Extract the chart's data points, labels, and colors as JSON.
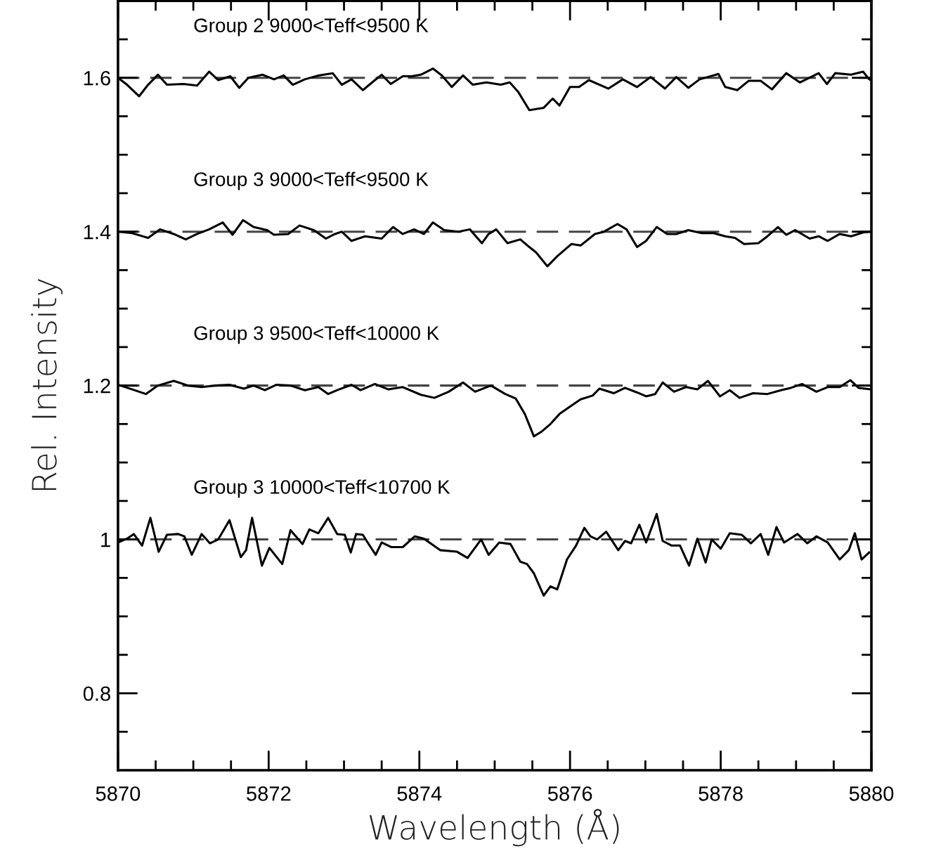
{
  "chart_data": {
    "type": "line",
    "xlabel": "Wavelength (Å)",
    "ylabel": "Rel. Intensity",
    "xlim": [
      5870,
      5880
    ],
    "ylim": [
      0.7,
      1.7
    ],
    "xticks": [
      5870,
      {
        "value": 5870.5,
        "label": null
      },
      {
        "value": 5871,
        "label": null
      },
      {
        "value": 5871.5,
        "label": null
      },
      5872,
      {
        "value": 5872.5,
        "label": null
      },
      {
        "value": 5873,
        "label": null
      },
      {
        "value": 5873.5,
        "label": null
      },
      5874,
      {
        "value": 5874.5,
        "label": null
      },
      {
        "value": 5875,
        "label": null
      },
      {
        "value": 5875.5,
        "label": null
      },
      5876,
      {
        "value": 5876.5,
        "label": null
      },
      {
        "value": 5877,
        "label": null
      },
      {
        "value": 5877.5,
        "label": null
      },
      5878,
      {
        "value": 5878.5,
        "label": null
      },
      {
        "value": 5879,
        "label": null
      },
      {
        "value": 5879.5,
        "label": null
      },
      5880
    ],
    "yticks": [
      {
        "value": 0.75,
        "label": null
      },
      0.8,
      {
        "value": 0.85,
        "label": null
      },
      {
        "value": 0.9,
        "label": null
      },
      {
        "value": 0.95,
        "label": null
      },
      1,
      {
        "value": 1.05,
        "label": null
      },
      {
        "value": 1.1,
        "label": null
      },
      {
        "value": 1.15,
        "label": null
      },
      1.2,
      {
        "value": 1.25,
        "label": null
      },
      {
        "value": 1.3,
        "label": null
      },
      {
        "value": 1.35,
        "label": null
      },
      1.4,
      {
        "value": 1.45,
        "label": null
      },
      {
        "value": 1.5,
        "label": null
      },
      {
        "value": 1.55,
        "label": null
      },
      1.6,
      {
        "value": 1.65,
        "label": null
      }
    ],
    "annotations": [
      "Group 2 9000<Teff<9500 K",
      "Group 3 9000<Teff<9500 K",
      "Group 3 9500<Teff<10000 K",
      "Group 3 10000<Teff<10700 K"
    ],
    "grid": false,
    "legend": false,
    "marker": "none",
    "line_style": "solid",
    "ref_lines": [
      {
        "axis": "y",
        "value": 1.6,
        "color": "#444444",
        "line_style": "dashed"
      },
      {
        "axis": "y",
        "value": 1.4,
        "color": "#444444",
        "line_style": "dashed"
      },
      {
        "axis": "y",
        "value": 1.2,
        "color": "#444444",
        "line_style": "dashed"
      },
      {
        "axis": "y",
        "value": 1.0,
        "color": "#444444",
        "line_style": "dashed"
      }
    ],
    "series": [
      {
        "color": "#000000",
        "x": [
          5870.0,
          5870.12,
          5870.28,
          5870.4,
          5870.53,
          5870.65,
          5870.87,
          5871.05,
          5871.21,
          5871.33,
          5871.49,
          5871.61,
          5871.73,
          5871.92,
          5872.07,
          5872.2,
          5872.32,
          5872.48,
          5872.66,
          5872.85,
          5872.97,
          5873.1,
          5873.25,
          5873.41,
          5873.5,
          5873.62,
          5873.78,
          5873.9,
          5874.02,
          5874.18,
          5874.3,
          5874.43,
          5874.58,
          5874.71,
          5874.89,
          5875.08,
          5875.2,
          5875.31,
          5875.46,
          5875.65,
          5875.77,
          5875.86,
          5876.0,
          5876.12,
          5876.25,
          5876.51,
          5876.7,
          5876.89,
          5877.07,
          5877.26,
          5877.41,
          5877.57,
          5877.72,
          5877.97,
          5878.06,
          5878.22,
          5878.37,
          5878.53,
          5878.68,
          5878.87,
          5879.05,
          5879.3,
          5879.41,
          5879.52,
          5879.73,
          5879.89,
          5879.97,
          5880.0
        ],
        "values": [
          1.6,
          1.591,
          1.576,
          1.591,
          1.604,
          1.591,
          1.592,
          1.59,
          1.608,
          1.597,
          1.602,
          1.587,
          1.6,
          1.604,
          1.598,
          1.603,
          1.591,
          1.598,
          1.603,
          1.606,
          1.591,
          1.598,
          1.584,
          1.597,
          1.604,
          1.592,
          1.602,
          1.602,
          1.604,
          1.612,
          1.603,
          1.588,
          1.603,
          1.591,
          1.594,
          1.591,
          1.594,
          1.582,
          1.558,
          1.561,
          1.573,
          1.564,
          1.588,
          1.588,
          1.597,
          1.586,
          1.598,
          1.588,
          1.601,
          1.586,
          1.601,
          1.587,
          1.598,
          1.605,
          1.588,
          1.584,
          1.596,
          1.596,
          1.585,
          1.606,
          1.594,
          1.606,
          1.592,
          1.606,
          1.604,
          1.608,
          1.598,
          1.597
        ]
      },
      {
        "color": "#000000",
        "x": [
          5870.0,
          5870.19,
          5870.4,
          5870.56,
          5870.74,
          5870.9,
          5871.05,
          5871.21,
          5871.39,
          5871.52,
          5871.66,
          5871.8,
          5871.98,
          5872.07,
          5872.26,
          5872.41,
          5872.6,
          5872.76,
          5872.88,
          5872.97,
          5873.1,
          5873.28,
          5873.5,
          5873.65,
          5873.78,
          5873.93,
          5874.06,
          5874.18,
          5874.33,
          5874.52,
          5874.67,
          5874.83,
          5874.92,
          5875.02,
          5875.17,
          5875.34,
          5875.46,
          5875.55,
          5875.7,
          5875.83,
          5876.02,
          5876.14,
          5876.33,
          5876.45,
          5876.63,
          5876.75,
          5876.89,
          5877.01,
          5877.15,
          5877.29,
          5877.41,
          5877.57,
          5877.75,
          5877.91,
          5878.06,
          5878.19,
          5878.31,
          5878.5,
          5878.62,
          5878.76,
          5878.87,
          5878.99,
          5879.18,
          5879.3,
          5879.42,
          5879.58,
          5879.73,
          5879.89,
          5880.0
        ],
        "values": [
          1.4,
          1.398,
          1.392,
          1.403,
          1.397,
          1.39,
          1.397,
          1.403,
          1.412,
          1.396,
          1.415,
          1.406,
          1.402,
          1.396,
          1.397,
          1.408,
          1.402,
          1.391,
          1.397,
          1.4,
          1.388,
          1.394,
          1.391,
          1.406,
          1.397,
          1.403,
          1.397,
          1.412,
          1.402,
          1.4,
          1.403,
          1.385,
          1.397,
          1.403,
          1.385,
          1.39,
          1.38,
          1.373,
          1.355,
          1.368,
          1.384,
          1.382,
          1.397,
          1.4,
          1.41,
          1.403,
          1.38,
          1.388,
          1.406,
          1.397,
          1.397,
          1.402,
          1.398,
          1.398,
          1.394,
          1.392,
          1.384,
          1.385,
          1.394,
          1.406,
          1.396,
          1.402,
          1.391,
          1.394,
          1.388,
          1.397,
          1.394,
          1.399,
          1.4
        ]
      },
      {
        "color": "#000000",
        "x": [
          5870.0,
          5870.19,
          5870.37,
          5870.53,
          5870.74,
          5870.93,
          5871.11,
          5871.29,
          5871.48,
          5871.67,
          5871.8,
          5871.95,
          5872.1,
          5872.29,
          5872.48,
          5872.66,
          5872.79,
          5872.91,
          5873.1,
          5873.22,
          5873.41,
          5873.59,
          5873.78,
          5874.02,
          5874.2,
          5874.39,
          5874.58,
          5874.74,
          5874.95,
          5875.14,
          5875.28,
          5875.4,
          5875.52,
          5875.62,
          5875.74,
          5875.86,
          5875.96,
          5876.14,
          5876.3,
          5876.39,
          5876.58,
          5876.73,
          5876.89,
          5877.01,
          5877.13,
          5877.23,
          5877.38,
          5877.54,
          5877.69,
          5877.83,
          5877.99,
          5878.12,
          5878.25,
          5878.43,
          5878.62,
          5878.8,
          5878.93,
          5879.08,
          5879.27,
          5879.42,
          5879.58,
          5879.72,
          5879.83,
          5880.0
        ],
        "values": [
          1.201,
          1.195,
          1.189,
          1.2,
          1.206,
          1.2,
          1.198,
          1.2,
          1.201,
          1.196,
          1.2,
          1.194,
          1.201,
          1.2,
          1.194,
          1.198,
          1.189,
          1.194,
          1.201,
          1.194,
          1.202,
          1.195,
          1.198,
          1.188,
          1.184,
          1.192,
          1.204,
          1.192,
          1.2,
          1.189,
          1.183,
          1.163,
          1.134,
          1.14,
          1.15,
          1.163,
          1.17,
          1.182,
          1.187,
          1.196,
          1.19,
          1.197,
          1.191,
          1.186,
          1.189,
          1.204,
          1.192,
          1.198,
          1.195,
          1.206,
          1.186,
          1.194,
          1.184,
          1.19,
          1.189,
          1.194,
          1.197,
          1.202,
          1.192,
          1.198,
          1.198,
          1.207,
          1.197,
          1.195
        ]
      },
      {
        "color": "#000000",
        "x": [
          5870.0,
          5870.12,
          5870.21,
          5870.32,
          5870.43,
          5870.54,
          5870.65,
          5870.8,
          5870.88,
          5870.98,
          5871.11,
          5871.22,
          5871.33,
          5871.48,
          5871.63,
          5871.7,
          5871.78,
          5871.91,
          5872.01,
          5872.18,
          5872.29,
          5872.45,
          5872.54,
          5872.66,
          5872.79,
          5872.91,
          5873.01,
          5873.09,
          5873.16,
          5873.25,
          5873.32,
          5873.42,
          5873.5,
          5873.63,
          5873.78,
          5873.94,
          5874.06,
          5874.28,
          5874.5,
          5874.64,
          5874.82,
          5874.92,
          5875.06,
          5875.21,
          5875.34,
          5875.43,
          5875.52,
          5875.65,
          5875.74,
          5875.83,
          5875.96,
          5876.08,
          5876.19,
          5876.27,
          5876.36,
          5876.48,
          5876.64,
          5876.73,
          5876.81,
          5876.92,
          5877.01,
          5877.15,
          5877.23,
          5877.35,
          5877.46,
          5877.58,
          5877.69,
          5877.8,
          5877.88,
          5878.0,
          5878.12,
          5878.28,
          5878.4,
          5878.53,
          5878.63,
          5878.74,
          5878.84,
          5879.02,
          5879.15,
          5879.27,
          5879.42,
          5879.58,
          5879.7,
          5879.78,
          5879.87,
          5879.97
        ],
        "values": [
          0.996,
          1.001,
          1.007,
          0.992,
          1.028,
          0.984,
          1.006,
          1.007,
          1.004,
          0.98,
          1.007,
          0.995,
          1.0,
          1.025,
          0.977,
          0.986,
          1.028,
          0.966,
          0.989,
          0.968,
          1.012,
          0.994,
          1.013,
          1.008,
          1.028,
          1.007,
          1.006,
          0.983,
          1.007,
          1.006,
          0.995,
          0.98,
          0.996,
          0.99,
          0.99,
          1.004,
          1.001,
          0.986,
          0.984,
          0.976,
          1.0,
          0.98,
          0.996,
          0.994,
          0.971,
          0.968,
          0.956,
          0.927,
          0.939,
          0.935,
          0.974,
          0.992,
          1.015,
          1.004,
          1.0,
          1.01,
          0.986,
          0.998,
          0.995,
          1.019,
          0.996,
          1.033,
          0.998,
          0.992,
          0.992,
          0.966,
          1.001,
          0.97,
          1.0,
          0.988,
          1.008,
          1.006,
          0.995,
          1.007,
          0.98,
          1.016,
          0.996,
          1.007,
          0.995,
          1.004,
          0.996,
          0.974,
          0.986,
          1.008,
          0.974,
          0.983
        ]
      }
    ]
  }
}
